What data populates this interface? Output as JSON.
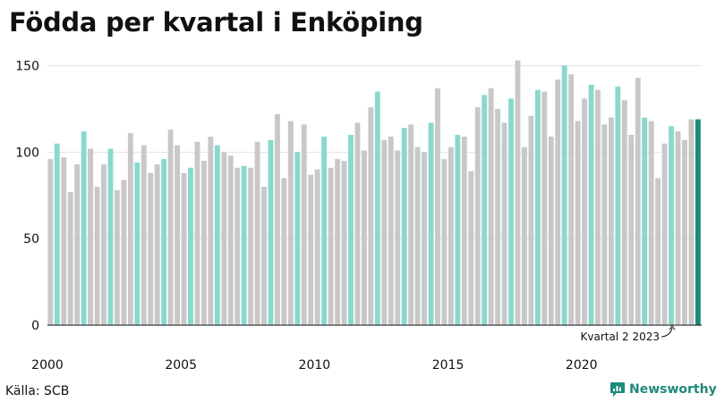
{
  "title": "Födda per kvartal i Enköping",
  "source": "Källa: SCB",
  "brand": "Newsworthy",
  "annotation": "Kvartal 2 2023",
  "colors": {
    "q1": "#c8c8c8",
    "q2": "#88d9cd",
    "q3": "#c8c8c8",
    "q4": "#c8c8c8",
    "latest": "#1e8a7a",
    "brand": "#1e8a7a",
    "axis": "#111111",
    "grid": "#e3e3e3"
  },
  "chart_data": {
    "type": "bar",
    "title": "Födda per kvartal i Enköping",
    "xlabel": "",
    "ylabel": "",
    "ylim": [
      0,
      160
    ],
    "yticks": [
      0,
      50,
      100,
      150
    ],
    "xticks": [
      "2000",
      "2005",
      "2010",
      "2015",
      "2020"
    ],
    "start_year": 2000,
    "highlight": "Kvartal 2",
    "grid": true,
    "values": [
      96,
      105,
      97,
      77,
      93,
      112,
      102,
      80,
      93,
      102,
      78,
      84,
      111,
      94,
      104,
      88,
      93,
      96,
      113,
      104,
      88,
      91,
      106,
      95,
      109,
      104,
      100,
      98,
      91,
      92,
      91,
      106,
      80,
      107,
      122,
      85,
      118,
      100,
      116,
      87,
      90,
      109,
      91,
      96,
      95,
      110,
      117,
      101,
      126,
      135,
      107,
      109,
      101,
      114,
      116,
      103,
      100,
      117,
      137,
      96,
      103,
      110,
      109,
      89,
      126,
      133,
      137,
      125,
      117,
      131,
      153,
      103,
      121,
      136,
      135,
      109,
      142,
      150,
      145,
      118,
      131,
      139,
      136,
      116,
      120,
      138,
      130,
      110,
      143,
      120,
      118,
      85,
      105,
      115,
      112,
      107,
      119,
      119
    ]
  }
}
